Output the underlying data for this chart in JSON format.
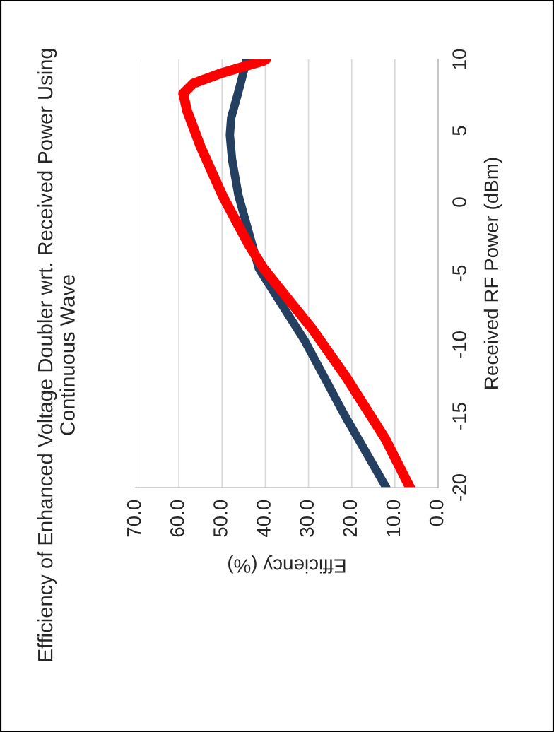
{
  "chart_data": {
    "type": "line",
    "title": "Efficiency of Enhanced Voltage Doubler wrt. Received Power Using Continuous Wave",
    "xlabel": "Efficiency (%)",
    "ylabel": "Received RF Power (dBm)",
    "xlim": [
      70,
      0
    ],
    "xticks": [
      {
        "value": 70,
        "label": "70.0"
      },
      {
        "value": 60,
        "label": "60.0"
      },
      {
        "value": 50,
        "label": "50.0"
      },
      {
        "value": 40,
        "label": "40.0"
      },
      {
        "value": 30,
        "label": "30.0"
      },
      {
        "value": 20,
        "label": "20.0"
      },
      {
        "value": 10,
        "label": "10.0"
      },
      {
        "value": 0,
        "label": "0.0"
      }
    ],
    "ylim": [
      -20,
      10
    ],
    "yticks": [
      -20,
      -15,
      -10,
      -5,
      0,
      5,
      10
    ],
    "grid": "x",
    "legend": false,
    "series": [
      {
        "color": "#243f60",
        "x": [
          12.0,
          21.7,
          30.8,
          41.5,
          46.2,
          47.7,
          48.2,
          47.9,
          45.9,
          44.3
        ],
        "values": [
          -20,
          -14.9,
          -9.75,
          -4.65,
          0.45,
          3.0,
          4.7,
          5.9,
          8.1,
          10
        ]
      },
      {
        "color": "#ff0000",
        "x": [
          6.5,
          12.2,
          21.2,
          29.1,
          40.4,
          43.8,
          49.9,
          55.0,
          58.1,
          59.0,
          56.7,
          50.5,
          40.4,
          39.8
        ],
        "values": [
          -20,
          -16.6,
          -12.3,
          -8.9,
          -4.65,
          -3.0,
          0.45,
          3.9,
          6.4,
          7.6,
          8.3,
          9.0,
          9.9,
          10
        ]
      }
    ]
  }
}
